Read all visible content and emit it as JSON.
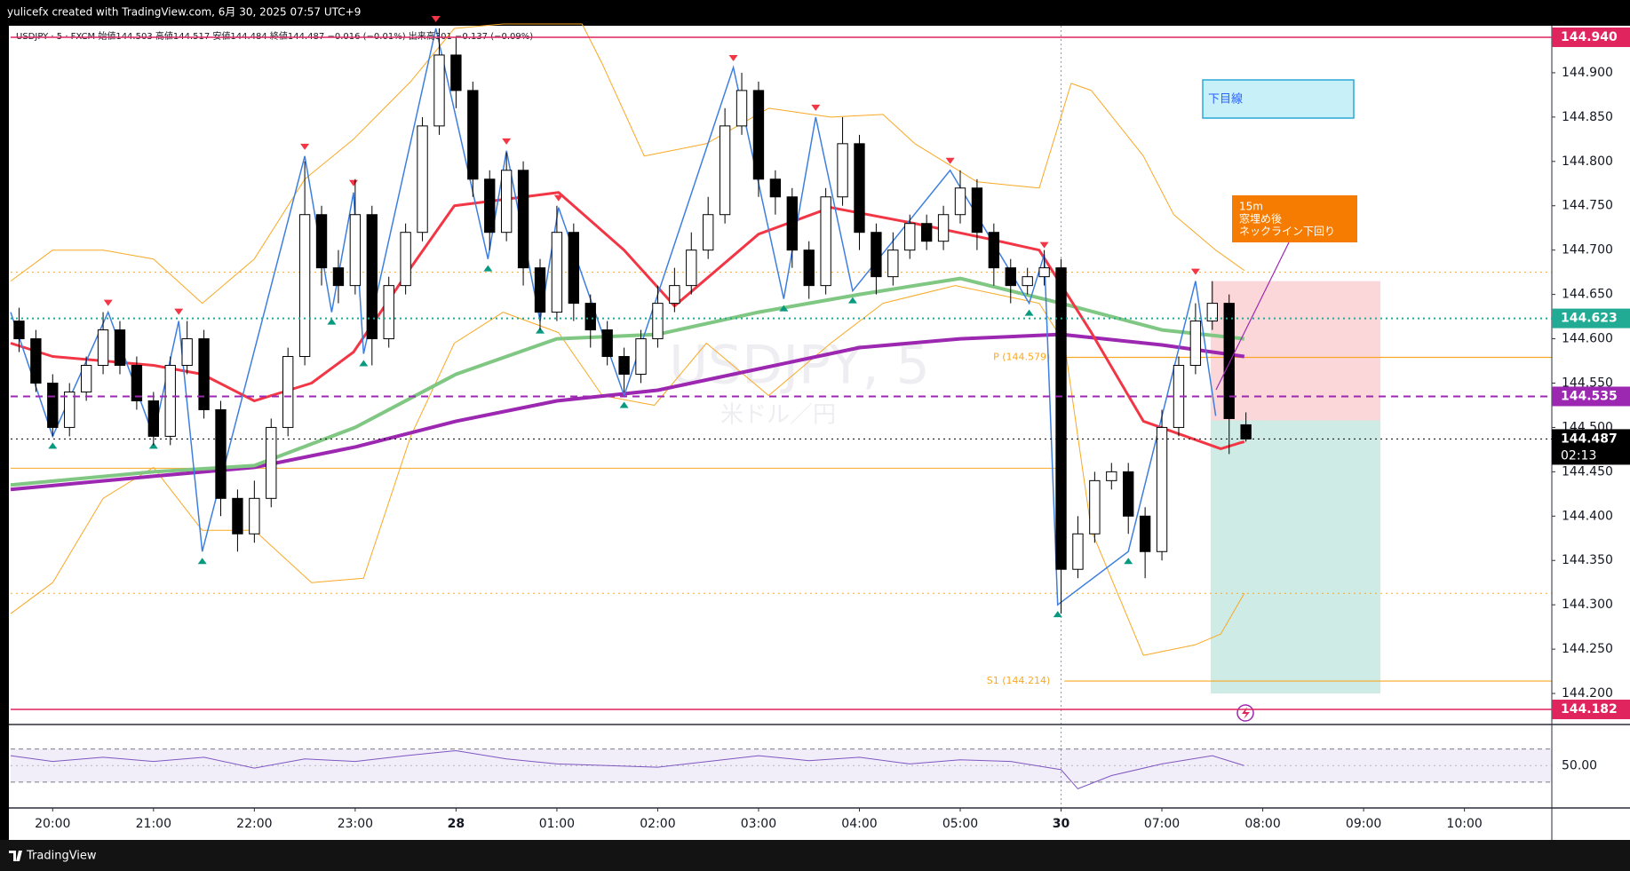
{
  "chart_data": {
    "type": "candlestick",
    "title": "yulicefx created with TradingView.com, 6月 30, 2025 07:57 UTC+9",
    "legend": "USDJPY · 5 · FXCM  始値144.503  高値144.517  安値144.484  終値144.487  −0.016 (−0.01%)  出来高301  −0.137 (−0.09%)",
    "watermark": {
      "symbol": "USDJPY, 5",
      "name": "米ドル／円"
    },
    "footer": "TradingView",
    "xlim": [
      -25,
      892
    ],
    "xticks": [
      {
        "value": 0,
        "label": "20:00"
      },
      {
        "value": 60,
        "label": "21:00"
      },
      {
        "value": 120,
        "label": "22:00"
      },
      {
        "value": 180,
        "label": "23:00"
      },
      {
        "value": 240,
        "label": "28"
      },
      {
        "value": 300,
        "label": "01:00"
      },
      {
        "value": 360,
        "label": "02:00"
      },
      {
        "value": 420,
        "label": "03:00"
      },
      {
        "value": 480,
        "label": "04:00"
      },
      {
        "value": 540,
        "label": "05:00"
      },
      {
        "value": 600,
        "label": "30"
      },
      {
        "value": 660,
        "label": "07:00"
      },
      {
        "value": 720,
        "label": "08:00"
      },
      {
        "value": 780,
        "label": "09:00"
      },
      {
        "value": 840,
        "label": "10:00"
      }
    ],
    "ylim": [
      144.165,
      144.953
    ],
    "yticks": [
      {
        "value": 144.2,
        "label": "144.200"
      },
      {
        "value": 144.25,
        "label": "144.250"
      },
      {
        "value": 144.3,
        "label": "144.300"
      },
      {
        "value": 144.35,
        "label": "144.350"
      },
      {
        "value": 144.4,
        "label": "144.400"
      },
      {
        "value": 144.45,
        "label": "144.450"
      },
      {
        "value": 144.5,
        "label": "144.500"
      },
      {
        "value": 144.55,
        "label": "144.550"
      },
      {
        "value": 144.6,
        "label": "144.600"
      },
      {
        "value": 144.65,
        "label": "144.650"
      },
      {
        "value": 144.7,
        "label": "144.700"
      },
      {
        "value": 144.75,
        "label": "144.750"
      },
      {
        "value": 144.8,
        "label": "144.800"
      },
      {
        "value": 144.85,
        "label": "144.850"
      },
      {
        "value": 144.9,
        "label": "144.900"
      }
    ],
    "candles": {
      "up_color": "#ffffff",
      "down_color": "#000000",
      "border_color": "#000000",
      "x": [
        -20,
        -10,
        0,
        10,
        20,
        30,
        40,
        50,
        60,
        70,
        80,
        90,
        100,
        110,
        120,
        130,
        140,
        150,
        160,
        170,
        180,
        190,
        200,
        210,
        220,
        230,
        240,
        250,
        260,
        270,
        280,
        290,
        300,
        310,
        320,
        330,
        340,
        350,
        360,
        370,
        380,
        390,
        400,
        410,
        420,
        430,
        440,
        450,
        460,
        470,
        480,
        490,
        500,
        510,
        520,
        530,
        540,
        550,
        560,
        570,
        580,
        590,
        600,
        610,
        620,
        630,
        640,
        650,
        660,
        670,
        680,
        690,
        700,
        710
      ],
      "open": [
        144.62,
        144.6,
        144.55,
        144.5,
        144.54,
        144.57,
        144.61,
        144.57,
        144.53,
        144.49,
        144.57,
        144.6,
        144.52,
        144.42,
        144.38,
        144.42,
        144.5,
        144.58,
        144.74,
        144.68,
        144.66,
        144.74,
        144.6,
        144.66,
        144.72,
        144.84,
        144.92,
        144.88,
        144.78,
        144.72,
        144.79,
        144.68,
        144.63,
        144.72,
        144.64,
        144.61,
        144.58,
        144.56,
        144.6,
        144.64,
        144.66,
        144.7,
        144.74,
        144.84,
        144.88,
        144.78,
        144.76,
        144.7,
        144.66,
        144.76,
        144.82,
        144.72,
        144.67,
        144.7,
        144.73,
        144.71,
        144.74,
        144.77,
        144.72,
        144.68,
        144.66,
        144.67,
        144.68,
        144.34,
        144.38,
        144.44,
        144.45,
        144.4,
        144.36,
        144.5,
        144.57,
        144.62,
        144.64,
        144.503
      ],
      "high": [
        144.635,
        144.61,
        144.56,
        144.55,
        144.58,
        144.63,
        144.62,
        144.58,
        144.54,
        144.58,
        144.62,
        144.61,
        144.53,
        144.43,
        144.44,
        144.51,
        144.59,
        144.8,
        144.75,
        144.7,
        144.78,
        144.75,
        144.67,
        144.73,
        144.85,
        144.95,
        144.94,
        144.89,
        144.79,
        144.81,
        144.8,
        144.69,
        144.75,
        144.73,
        144.65,
        144.62,
        144.59,
        144.61,
        144.66,
        144.68,
        144.72,
        144.76,
        144.86,
        144.9,
        144.89,
        144.79,
        144.77,
        144.71,
        144.77,
        144.85,
        144.83,
        144.73,
        144.72,
        144.74,
        144.74,
        144.75,
        144.79,
        144.78,
        144.73,
        144.69,
        144.68,
        144.7,
        144.69,
        144.4,
        144.45,
        144.46,
        144.46,
        144.41,
        144.52,
        144.58,
        144.64,
        144.665,
        144.65,
        144.517
      ],
      "low": [
        144.585,
        144.54,
        144.49,
        144.49,
        144.53,
        144.56,
        144.56,
        144.52,
        144.48,
        144.48,
        144.56,
        144.51,
        144.4,
        144.36,
        144.37,
        144.41,
        144.49,
        144.57,
        144.66,
        144.64,
        144.65,
        144.57,
        144.59,
        144.65,
        144.71,
        144.83,
        144.86,
        144.76,
        144.7,
        144.71,
        144.66,
        144.61,
        144.62,
        144.62,
        144.59,
        144.57,
        144.54,
        144.55,
        144.59,
        144.63,
        144.65,
        144.69,
        144.73,
        144.83,
        144.76,
        144.74,
        144.68,
        144.645,
        144.65,
        144.75,
        144.7,
        144.65,
        144.66,
        144.69,
        144.7,
        144.7,
        144.73,
        144.7,
        144.66,
        144.64,
        144.65,
        144.66,
        144.29,
        144.33,
        144.37,
        144.43,
        144.38,
        144.33,
        144.35,
        144.49,
        144.56,
        144.61,
        144.47,
        144.484
      ],
      "close": [
        144.6,
        144.55,
        144.5,
        144.54,
        144.57,
        144.61,
        144.57,
        144.53,
        144.49,
        144.57,
        144.6,
        144.52,
        144.42,
        144.38,
        144.42,
        144.5,
        144.58,
        144.74,
        144.68,
        144.66,
        144.74,
        144.6,
        144.66,
        144.72,
        144.84,
        144.92,
        144.88,
        144.78,
        144.72,
        144.79,
        144.68,
        144.63,
        144.72,
        144.64,
        144.61,
        144.58,
        144.56,
        144.6,
        144.64,
        144.66,
        144.7,
        144.74,
        144.84,
        144.88,
        144.78,
        144.76,
        144.7,
        144.66,
        144.76,
        144.82,
        144.72,
        144.67,
        144.7,
        144.73,
        144.71,
        144.74,
        144.77,
        144.72,
        144.68,
        144.66,
        144.67,
        144.68,
        144.34,
        144.38,
        144.44,
        144.45,
        144.4,
        144.36,
        144.5,
        144.57,
        144.62,
        144.64,
        144.51,
        144.487
      ]
    },
    "lines": [
      {
        "color": "#f9a825",
        "width": 1,
        "x": [
          -25,
          0,
          30,
          60,
          89,
          120,
          150,
          179,
          213,
          239,
          268,
          301,
          315,
          327,
          352,
          389,
          426,
          463,
          494,
          513,
          550,
          587,
          606,
          618,
          649,
          667,
          692,
          709
        ],
        "values": [
          144.665,
          144.7,
          144.7,
          144.69,
          144.64,
          144.69,
          144.78,
          144.825,
          144.89,
          144.95,
          144.955,
          144.955,
          144.955,
          144.91,
          144.806,
          144.82,
          144.86,
          144.85,
          144.853,
          144.82,
          144.777,
          144.77,
          144.888,
          144.88,
          144.806,
          144.74,
          144.7,
          144.677
        ]
      },
      {
        "color": "#f9a825",
        "width": 1,
        "x": [
          -25,
          0,
          30,
          60,
          89,
          120,
          154,
          185,
          213,
          239,
          268,
          301,
          327,
          358,
          389,
          426,
          463,
          494,
          537,
          587,
          602,
          618,
          649,
          680,
          695,
          709
        ],
        "values": [
          144.29,
          144.325,
          144.42,
          144.455,
          144.384,
          144.384,
          144.325,
          144.33,
          144.49,
          144.595,
          144.63,
          144.607,
          144.536,
          144.525,
          144.595,
          144.536,
          144.595,
          144.64,
          144.66,
          144.64,
          144.595,
          144.384,
          144.243,
          144.255,
          144.267,
          144.313
        ]
      },
      {
        "color": "#9c27b0",
        "width": 4,
        "x": [
          -25,
          60,
          120,
          180,
          240,
          300,
          360,
          420,
          480,
          540,
          600,
          660,
          709
        ],
        "values": [
          144.43,
          144.445,
          144.455,
          144.478,
          144.507,
          144.53,
          144.542,
          144.566,
          144.59,
          144.6,
          144.605,
          144.593,
          144.58
        ]
      },
      {
        "color": "#81c784",
        "width": 4,
        "x": [
          -25,
          60,
          120,
          180,
          240,
          300,
          360,
          420,
          480,
          540,
          600,
          660,
          709
        ],
        "values": [
          144.435,
          144.45,
          144.457,
          144.5,
          144.56,
          144.6,
          144.605,
          144.63,
          144.65,
          144.668,
          144.64,
          144.61,
          144.6
        ]
      },
      {
        "color": "#f23645",
        "width": 3,
        "x": [
          -25,
          0,
          60,
          89,
          120,
          154,
          179,
          213,
          239,
          301,
          340,
          370,
          420,
          463,
          513,
          556,
          587,
          618,
          649,
          695,
          709
        ],
        "values": [
          144.595,
          144.58,
          144.57,
          144.56,
          144.53,
          144.55,
          144.585,
          144.68,
          144.75,
          144.765,
          144.7,
          144.637,
          144.718,
          144.748,
          144.73,
          144.713,
          144.7,
          144.607,
          144.507,
          144.476,
          144.484
        ]
      }
    ],
    "zigzag": {
      "color": "#3d7fe0",
      "up_color": "#089981",
      "down_color": "#f23645",
      "x": [
        -25,
        0,
        33,
        60,
        75,
        89,
        150,
        166,
        179,
        185,
        228,
        259,
        270,
        290,
        301,
        340,
        405,
        435,
        454,
        476,
        534,
        581,
        590,
        598,
        640,
        680,
        692
      ],
      "values": [
        144.63,
        144.49,
        144.63,
        144.49,
        144.62,
        144.36,
        144.806,
        144.63,
        144.765,
        144.583,
        144.95,
        144.69,
        144.812,
        144.62,
        144.748,
        144.536,
        144.906,
        144.645,
        144.85,
        144.654,
        144.79,
        144.64,
        144.695,
        144.3,
        144.36,
        144.665,
        144.513
      ]
    },
    "guides": [
      {
        "value": 144.675,
        "color": "#f9a825",
        "style": "dotted",
        "from": -25,
        "to": 892
      },
      {
        "value": 144.313,
        "color": "#f9a825",
        "style": "dotted",
        "from": -25,
        "to": 892
      },
      {
        "value": 144.454,
        "color": "#f9a825",
        "style": "solid",
        "from": -25,
        "to": 600
      }
    ],
    "pivots": [
      {
        "label": "P (144.579)",
        "value": 144.579,
        "color": "#f9a825",
        "from": 602,
        "to": 892
      },
      {
        "label": "S1 (144.214)",
        "value": 144.214,
        "color": "#f9a825",
        "from": 602,
        "to": 892
      }
    ],
    "levels": [
      {
        "value": 144.94,
        "label": "144.940",
        "color": "#e0245e",
        "style": "solid"
      },
      {
        "value": 144.623,
        "label": "144.623",
        "color": "#22ab94",
        "style": "dotted"
      },
      {
        "value": 144.535,
        "label": "144.535",
        "color": "#9c27b0",
        "style": "dashed"
      },
      {
        "value": 144.487,
        "label": "144.487",
        "color": "#000000",
        "style": "dotted",
        "countdown": "02:13"
      },
      {
        "value": 144.182,
        "label": "144.182",
        "color": "#e0245e",
        "style": "solid"
      }
    ],
    "position": {
      "x": [
        689,
        790
      ],
      "entry": 144.508,
      "stop": 144.665,
      "target": 144.2
    },
    "annotations": [
      {
        "text": "下目線"
      },
      {
        "lines": [
          "15m",
          "窓埋め後",
          "ネックライン下回り"
        ]
      }
    ],
    "rsi": {
      "color": "#7e57c2",
      "x": [
        -25,
        0,
        30,
        60,
        90,
        120,
        150,
        180,
        210,
        240,
        270,
        300,
        330,
        360,
        390,
        420,
        450,
        480,
        510,
        540,
        570,
        600,
        610,
        630,
        660,
        690,
        709
      ],
      "values": [
        62,
        55,
        60,
        55,
        60,
        47,
        58,
        55,
        62,
        68,
        58,
        52,
        50,
        48,
        55,
        62,
        56,
        60,
        52,
        57,
        55,
        45,
        22,
        38,
        52,
        62,
        50
      ],
      "ylim": [
        1,
        76
      ],
      "yticks": [
        {
          "value": 50,
          "label": "50.00"
        }
      ],
      "bands": [
        30,
        70
      ]
    }
  }
}
